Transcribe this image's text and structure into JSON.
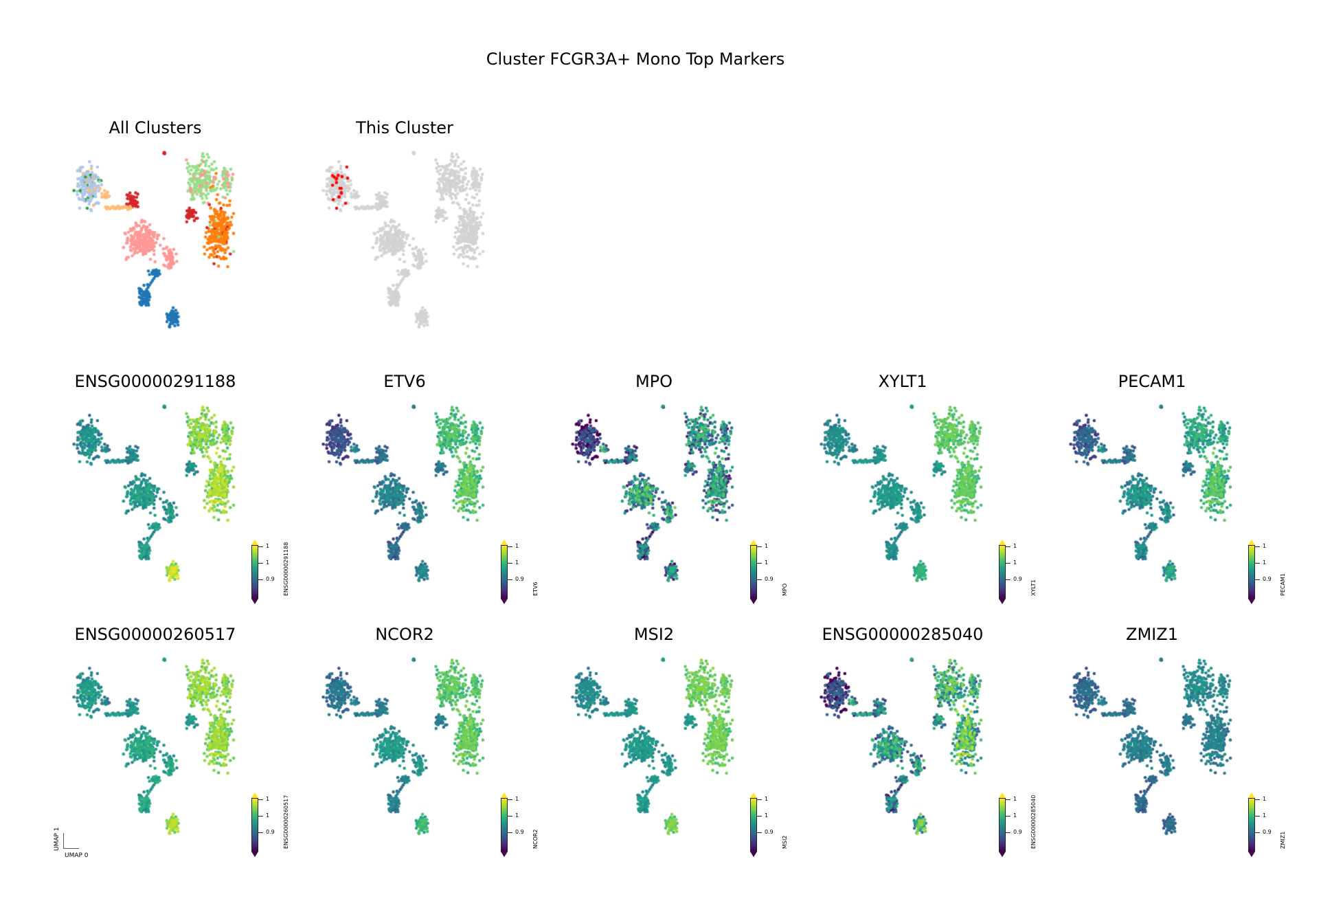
{
  "chart_data": {
    "type": "scatter",
    "title": "Cluster FCGR3A+ Mono Top Markers",
    "embedding_axes": {
      "x": "UMAP 0",
      "y": "UMAP 1"
    },
    "overview_panels": [
      {
        "title": "All Clusters",
        "mode": "clusters"
      },
      {
        "title": "This Cluster",
        "mode": "highlight",
        "highlight_color": "#ff0000",
        "background_color": "#d3d3d3"
      }
    ],
    "cluster_colors": {
      "A": "#aec7e8",
      "A2": "#2ca02c",
      "A3": "#ffbb78",
      "B": "#d62728",
      "C": "#ff9896",
      "D": "#98df8a",
      "E": "#ff7f0e",
      "F": "#1f77b4",
      "F2": "#1f77b4"
    },
    "colormap": "viridis",
    "colorbar_ticks": [
      "1",
      "1",
      "0.9"
    ],
    "genes": [
      {
        "name": "ENSG00000291188",
        "levels": {
          "A": 0.45,
          "B": 0.45,
          "C": 0.5,
          "D": 0.78,
          "E": 0.82,
          "F": 0.5,
          "F2": 0.85
        },
        "noise": 0.12
      },
      {
        "name": "ETV6",
        "levels": {
          "A": 0.2,
          "B": 0.35,
          "C": 0.4,
          "D": 0.65,
          "E": 0.7,
          "F": 0.3,
          "F2": 0.4
        },
        "noise": 0.12
      },
      {
        "name": "MPO",
        "levels": {
          "A": 0.02,
          "B": 0.3,
          "C": 0.45,
          "D": 0.4,
          "E": 0.4,
          "F": 0.25,
          "F2": 0.3
        },
        "noise": 0.35
      },
      {
        "name": "XYLT1",
        "levels": {
          "A": 0.45,
          "B": 0.5,
          "C": 0.5,
          "D": 0.72,
          "E": 0.72,
          "F": 0.45,
          "F2": 0.6
        },
        "noise": 0.08
      },
      {
        "name": "PECAM1",
        "levels": {
          "A": 0.25,
          "B": 0.35,
          "C": 0.45,
          "D": 0.55,
          "E": 0.65,
          "F": 0.4,
          "F2": 0.5
        },
        "noise": 0.15
      },
      {
        "name": "ENSG00000260517",
        "levels": {
          "A": 0.5,
          "B": 0.5,
          "C": 0.55,
          "D": 0.8,
          "E": 0.8,
          "F": 0.55,
          "F2": 0.82
        },
        "noise": 0.1
      },
      {
        "name": "NCOR2",
        "levels": {
          "A": 0.35,
          "B": 0.4,
          "C": 0.5,
          "D": 0.7,
          "E": 0.72,
          "F": 0.4,
          "F2": 0.62
        },
        "noise": 0.1
      },
      {
        "name": "MSI2",
        "levels": {
          "A": 0.45,
          "B": 0.5,
          "C": 0.5,
          "D": 0.75,
          "E": 0.75,
          "F": 0.5,
          "F2": 0.75
        },
        "noise": 0.08
      },
      {
        "name": "ENSG00000285040",
        "levels": {
          "A": 0.08,
          "B": 0.4,
          "C": 0.45,
          "D": 0.55,
          "E": 0.6,
          "F": 0.3,
          "F2": 0.55
        },
        "noise": 0.3
      },
      {
        "name": "ZMIZ1",
        "levels": {
          "A": 0.3,
          "B": 0.35,
          "C": 0.4,
          "D": 0.45,
          "E": 0.4,
          "F": 0.3,
          "F2": 0.3
        },
        "noise": 0.1
      }
    ]
  }
}
